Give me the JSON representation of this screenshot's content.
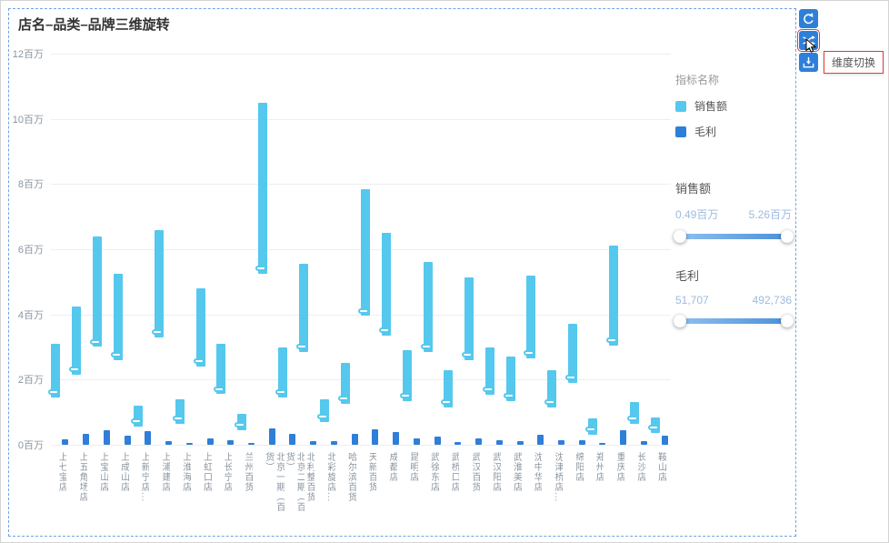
{
  "widget": {
    "title": "店名–品类–品牌三维旋转"
  },
  "toolbar": {
    "tooltip": "维度切换",
    "buttons": [
      {
        "icon": "undo-icon"
      },
      {
        "icon": "dimension-switch-icon",
        "highlighted": true
      },
      {
        "icon": "export-icon"
      }
    ]
  },
  "legend": {
    "header": "指标名称",
    "items": [
      {
        "label": "销售额",
        "color": "#55C8EE"
      },
      {
        "label": "毛利",
        "color": "#2F7ED8"
      }
    ]
  },
  "filters": [
    {
      "label": "销售额",
      "min": "0.49百万",
      "max": "5.26百万"
    },
    {
      "label": "毛利",
      "min": "51,707",
      "max": "492,736"
    }
  ],
  "colors": {
    "accent_blue": "#2E7FD9",
    "selection_dashed": "#6FA3E8",
    "highlight_red": "#E23B3B",
    "sales_bar": "#55C8EE",
    "profit_bar": "#2F7ED8"
  },
  "chart_data": {
    "type": "bar",
    "subtype": "floating-range-bars-with-low-markers",
    "title": "店名–品类–品牌三维旋转",
    "unit": "百万",
    "ylim": [
      0,
      12
    ],
    "grid": true,
    "legend_position": "right",
    "yticks": [
      {
        "value": 0,
        "label": "0百万"
      },
      {
        "value": 2,
        "label": "2百万"
      },
      {
        "value": 4,
        "label": "4百万"
      },
      {
        "value": 6,
        "label": "6百万"
      },
      {
        "value": 8,
        "label": "8百万"
      },
      {
        "value": 10,
        "label": "10百万"
      },
      {
        "value": 12,
        "label": "12百万"
      }
    ],
    "categories": [
      "上七宝店",
      "上五角场店",
      "上宝山店",
      "上成山店",
      "上新宁店...",
      "上浦建店",
      "上淮海店",
      "上虹口店",
      "上长宁店",
      "兰州百货",
      "北京一期（百货）",
      "北京二期（百货）",
      "北利整百货",
      "北彩旋店...",
      "哈尔滨百货",
      "天新百货",
      "成都店",
      "昆明店",
      "武徐东店",
      "武桥口店",
      "武汉百货",
      "武汉阳店",
      "武淮美店",
      "沈中华店",
      "沈津桥店...",
      "绵阳店",
      "郑州店",
      "重庆店",
      "长沙店",
      "鞍山店"
    ],
    "series": [
      {
        "name": "销售额",
        "color": "#55C8EE",
        "low": [
          1.45,
          2.15,
          3.0,
          2.6,
          0.55,
          3.3,
          0.65,
          2.4,
          1.55,
          0.45,
          5.25,
          1.45,
          2.85,
          0.7,
          1.25,
          3.95,
          3.35,
          1.35,
          2.85,
          1.15,
          2.6,
          1.55,
          1.35,
          2.65,
          1.15,
          1.9,
          0.3,
          3.05,
          0.65,
          0.36
        ],
        "high": [
          3.1,
          4.25,
          6.4,
          5.25,
          1.2,
          6.6,
          1.4,
          4.8,
          3.1,
          0.95,
          10.5,
          3.0,
          5.55,
          1.4,
          2.5,
          7.85,
          6.5,
          2.9,
          5.6,
          2.3,
          5.15,
          3.0,
          2.7,
          5.2,
          2.3,
          3.7,
          0.8,
          6.1,
          1.3,
          0.85
        ]
      },
      {
        "name": "毛利",
        "color": "#2F7ED8",
        "values": [
          0.17,
          0.34,
          0.45,
          0.28,
          0.42,
          0.1,
          0.07,
          0.2,
          0.13,
          0.06,
          0.49,
          0.33,
          0.1,
          0.1,
          0.34,
          0.48,
          0.4,
          0.2,
          0.25,
          0.08,
          0.2,
          0.14,
          0.1,
          0.3,
          0.14,
          0.15,
          0.06,
          0.45,
          0.1,
          0.28
        ]
      }
    ]
  }
}
